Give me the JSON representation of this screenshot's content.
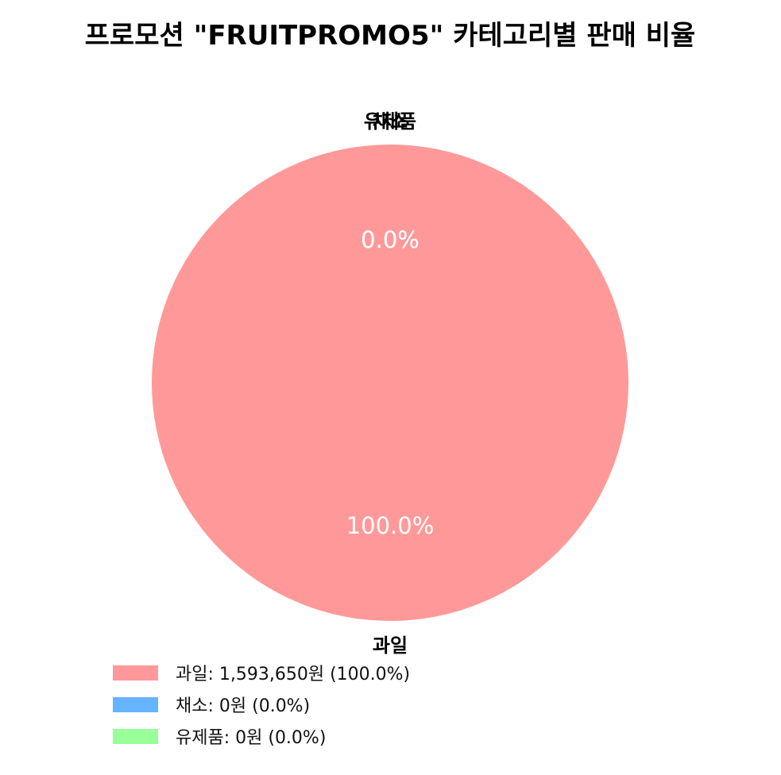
{
  "chart_data": {
    "type": "pie",
    "title": "프로모션 \"FRUITPROMO5\" 카테고리별 판매 비율",
    "unit": "원",
    "slices": [
      {
        "label": "과일",
        "value": 1593650,
        "percent": 100.0,
        "percent_label": "100.0%",
        "color": "#ff9999",
        "legend": "과일: 1,593,650원 (100.0%)"
      },
      {
        "label": "채소",
        "value": 0,
        "percent": 0.0,
        "percent_label": "0.0%",
        "color": "#66b3ff",
        "legend": "채소: 0원 (0.0%)"
      },
      {
        "label": "유제품",
        "value": 0,
        "percent": 0.0,
        "percent_label": "0.0%",
        "color": "#99ff99",
        "legend": "유제품: 0원 (0.0%)"
      }
    ],
    "legend_position": "bottom"
  }
}
